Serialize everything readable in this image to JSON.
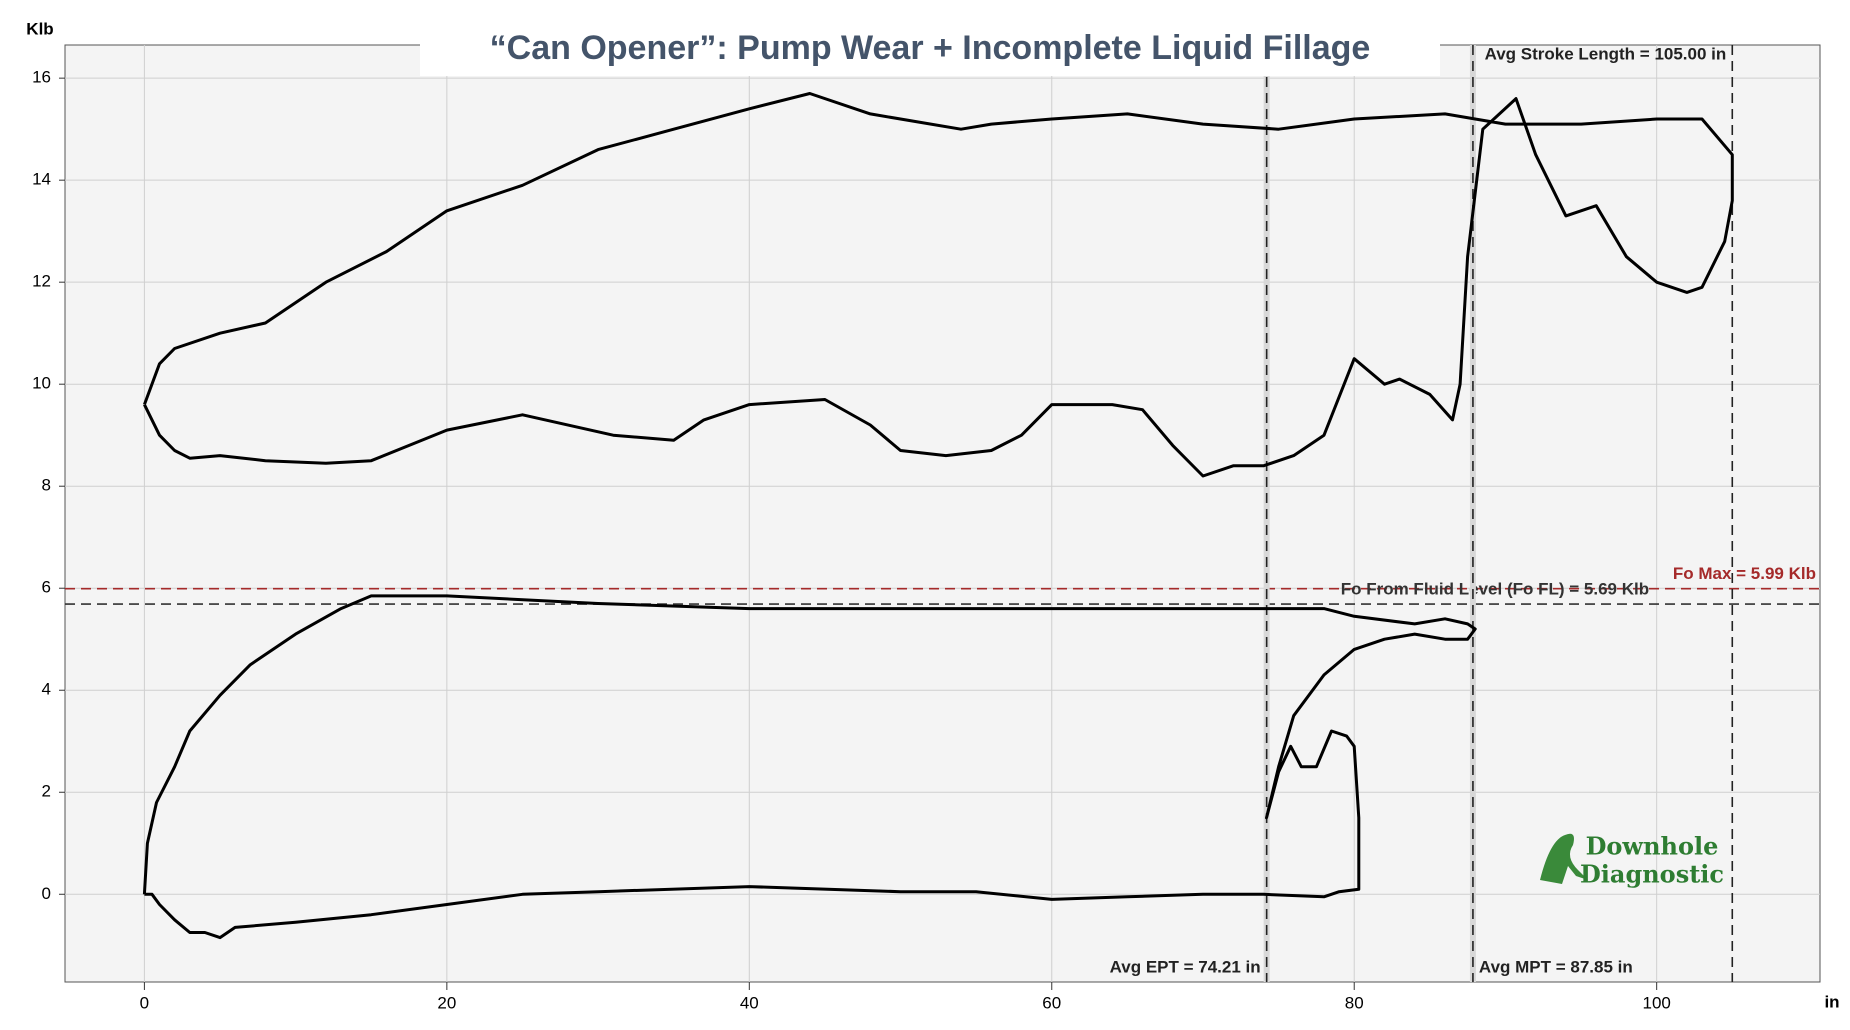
{
  "chart_data": {
    "type": "line",
    "title": "“Can Opener”:  Pump Wear + Incomplete Liquid Fillage",
    "y_label": "Klb",
    "x_label": "in",
    "xlim": [
      -5.25,
      110.8
    ],
    "ylim": [
      -1.72,
      16.65
    ],
    "xticks": [
      0,
      20,
      40,
      60,
      80,
      100
    ],
    "yticks": [
      0,
      2,
      4,
      6,
      8,
      10,
      12,
      14,
      16
    ],
    "grid": true,
    "series": [
      {
        "color": "#000000",
        "x": [
          0,
          1,
          2,
          5,
          8,
          12,
          16,
          20,
          25,
          30,
          35,
          40,
          44,
          48,
          54,
          56,
          60,
          65,
          70,
          75,
          80,
          86,
          90,
          95,
          100,
          103,
          105,
          105,
          104.5,
          103,
          102,
          100,
          98,
          96,
          94,
          92,
          90.7,
          88.5,
          87.5,
          87,
          86.5,
          85,
          83,
          82,
          80,
          78,
          76,
          74,
          72,
          70,
          68,
          66,
          64,
          60,
          58,
          56,
          53,
          50,
          48,
          45,
          40,
          37,
          35,
          31,
          25,
          20,
          15,
          12,
          8,
          5,
          3,
          2,
          1,
          0
        ],
        "values": [
          9.6,
          10.4,
          10.7,
          11.0,
          11.2,
          12.0,
          12.6,
          13.4,
          13.9,
          14.6,
          15.0,
          15.4,
          15.7,
          15.3,
          15.0,
          15.1,
          15.2,
          15.3,
          15.1,
          15.0,
          15.2,
          15.3,
          15.1,
          15.1,
          15.2,
          15.2,
          14.5,
          13.6,
          12.8,
          11.9,
          11.8,
          12.0,
          12.5,
          13.5,
          13.3,
          14.5,
          15.6,
          15.0,
          12.5,
          10.0,
          9.3,
          9.8,
          10.1,
          10.0,
          10.5,
          9.0,
          8.6,
          8.4,
          8.4,
          8.2,
          8.8,
          9.5,
          9.6,
          9.6,
          9.0,
          8.7,
          8.6,
          8.7,
          9.2,
          9.7,
          9.6,
          9.3,
          8.9,
          9.0,
          9.4,
          9.1,
          8.5,
          8.45,
          8.5,
          8.6,
          8.55,
          8.7,
          9.0,
          9.6
        ]
      },
      {
        "color": "#000000",
        "x": [
          0,
          0.2,
          0.8,
          2,
          3,
          5,
          7,
          10,
          13,
          15,
          20,
          30,
          40,
          50,
          60,
          70,
          76,
          78,
          80,
          84,
          86,
          87.5,
          88,
          87.5,
          86,
          84,
          82,
          80,
          78,
          76,
          75,
          74.2,
          75,
          75.8,
          76.5,
          77.5,
          78.5,
          79.5,
          80,
          80.3,
          80.3,
          79,
          78,
          74,
          70,
          65,
          60,
          55,
          50,
          40,
          30,
          25,
          20,
          15,
          10,
          6,
          5,
          4,
          3,
          2,
          1,
          0.5,
          0
        ],
        "values": [
          0,
          1,
          1.8,
          2.5,
          3.2,
          3.9,
          4.5,
          5.1,
          5.6,
          5.85,
          5.85,
          5.7,
          5.6,
          5.6,
          5.6,
          5.6,
          5.6,
          5.6,
          5.45,
          5.3,
          5.4,
          5.3,
          5.2,
          5.0,
          5.0,
          5.1,
          5.0,
          4.8,
          4.3,
          3.5,
          2.5,
          1.5,
          2.4,
          2.9,
          2.5,
          2.5,
          3.2,
          3.1,
          2.9,
          1.5,
          0.1,
          0.05,
          -0.05,
          0,
          0,
          -0.05,
          -0.1,
          0.05,
          0.05,
          0.15,
          0.05,
          0,
          -0.2,
          -0.4,
          -0.55,
          -0.65,
          -0.85,
          -0.75,
          -0.75,
          -0.5,
          -0.2,
          0,
          0
        ]
      }
    ],
    "vlines": [
      {
        "x": 74.21,
        "label": "Avg EPT = 74.21 in"
      },
      {
        "x": 87.85,
        "label": "Avg MPT = 87.85 in"
      },
      {
        "x": 105.0,
        "label": "Avg Stroke Length = 105.00 in"
      }
    ],
    "hlines": [
      {
        "y": 5.99,
        "label": "Fo Max = 5.99 Klb",
        "color": "#a52a2a"
      },
      {
        "y": 5.69,
        "label": "Fo From Fluid Level (Fo FL) = 5.69 Klb",
        "color": "#333333"
      }
    ],
    "logo": [
      "Downhole",
      "Diagnostic"
    ]
  }
}
